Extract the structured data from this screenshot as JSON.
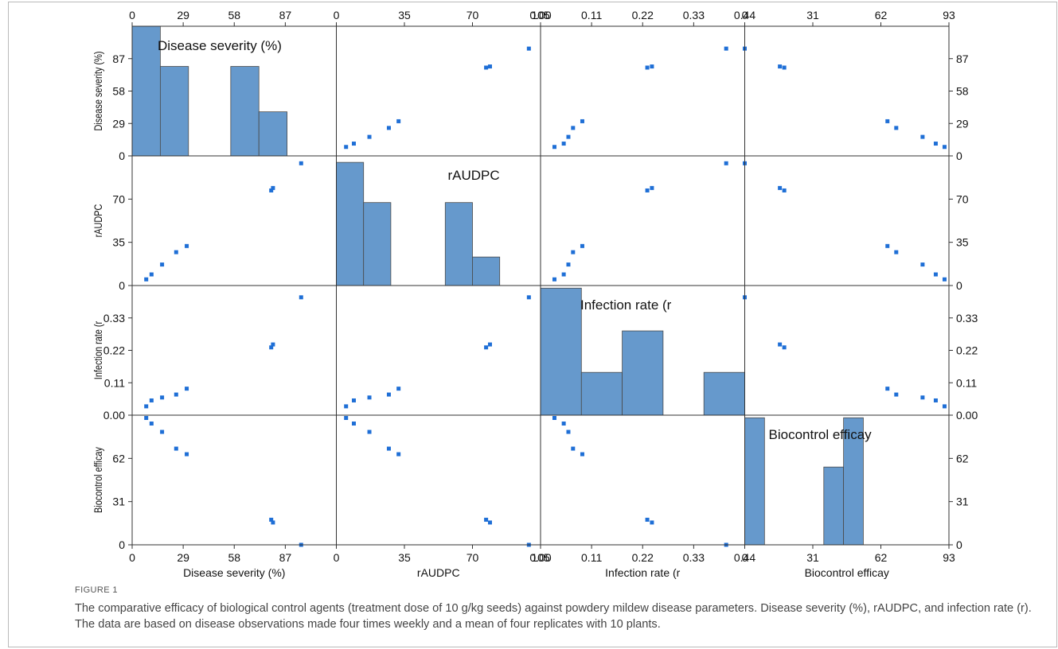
{
  "figure": {
    "label": "FIGURE 1",
    "caption": "The comparative efficacy of biological control agents (treatment dose of 10 g/kg seeds) against powdery mildew disease parameters. Disease severity (%), rAUDPC, and infection rate (r). The data are based on disease observations made four times weekly and a mean of four replicates with 10 plants."
  },
  "chart_data": {
    "type": "scatter",
    "matrix_type": "scatterplot-matrix",
    "point_color": "#1f6fd6",
    "bar_color": "#6699cc",
    "variables": [
      {
        "name": "Disease severity (%)",
        "range": [
          0,
          116
        ],
        "ticks": [
          0,
          29,
          58,
          87
        ],
        "tick_labels": [
          "0",
          "29",
          "58",
          "87"
        ],
        "values": [
          8,
          11,
          17,
          25,
          31,
          79,
          80,
          96
        ],
        "histogram": {
          "bins": [
            [
              0,
              16
            ],
            [
              16,
              32
            ],
            [
              56,
              72
            ],
            [
              72,
              88
            ]
          ],
          "heights": [
            1.0,
            0.69,
            0.69,
            0.34
          ]
        }
      },
      {
        "name": "rAUDPC",
        "range": [
          0,
          105
        ],
        "ticks": [
          0,
          35,
          70,
          105
        ],
        "tick_labels": [
          "0",
          "35",
          "70",
          "105"
        ],
        "values": [
          5,
          9,
          17,
          27,
          32,
          77,
          79,
          99
        ],
        "histogram": {
          "bins": [
            [
              0,
              14
            ],
            [
              14,
              28
            ],
            [
              56,
              70
            ],
            [
              70,
              84
            ]
          ],
          "heights": [
            0.95,
            0.64,
            0.64,
            0.22
          ]
        }
      },
      {
        "name": "Infection rate (r",
        "range": [
          0,
          0.44
        ],
        "ticks": [
          0,
          0.11,
          0.22,
          0.33,
          0.44
        ],
        "tick_labels": [
          "0.00",
          "0.11",
          "0.22",
          "0.33",
          "0.44"
        ],
        "values": [
          0.03,
          0.05,
          0.06,
          0.07,
          0.09,
          0.23,
          0.24,
          0.4
        ],
        "histogram": {
          "bins": [
            [
              0,
              0.088
            ],
            [
              0.088,
              0.176
            ],
            [
              0.176,
              0.264
            ],
            [
              0.352,
              0.44
            ]
          ],
          "heights": [
            0.98,
            0.33,
            0.65,
            0.33
          ]
        }
      },
      {
        "name": "Biocontrol efficay",
        "range": [
          0,
          93
        ],
        "ticks": [
          0,
          31,
          62,
          93
        ],
        "tick_labels": [
          "0",
          "31",
          "62",
          "93"
        ],
        "values": [
          91,
          87,
          81,
          69,
          65,
          18,
          16,
          0
        ],
        "histogram": {
          "bins": [
            [
              0,
              9
            ],
            [
              36,
              45
            ],
            [
              45,
              54
            ]
          ],
          "heights": [
            0.98,
            0.6,
            0.98
          ]
        }
      }
    ]
  }
}
